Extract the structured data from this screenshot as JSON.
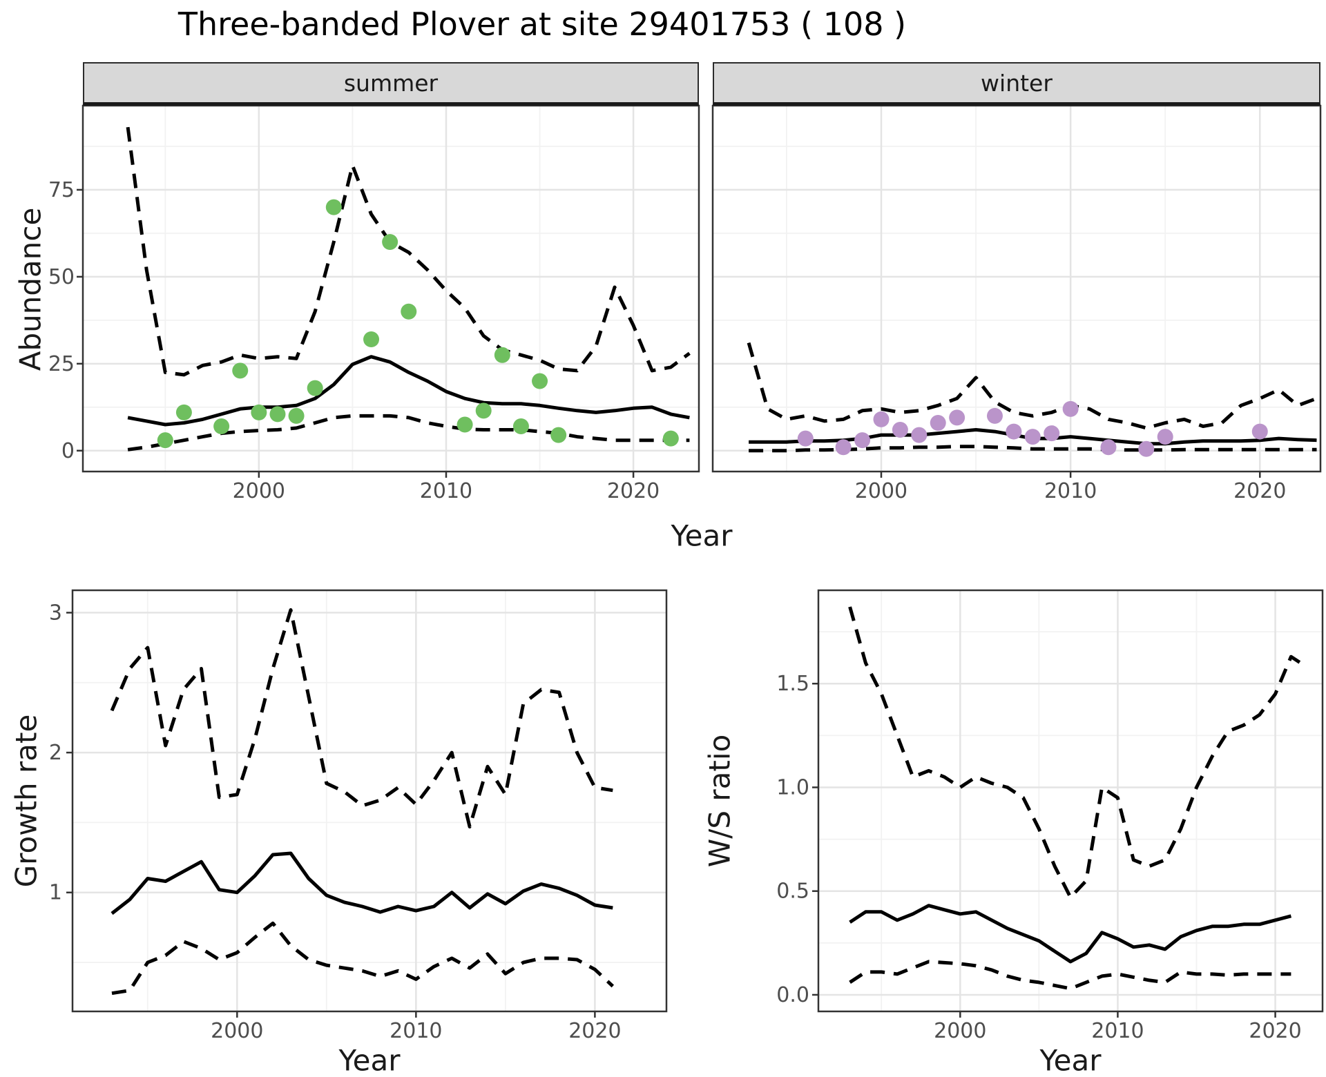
{
  "title": "Three-banded Plover at site 29401753 ( 108 )",
  "facets": {
    "summer": "summer",
    "winter": "winter"
  },
  "axis_titles": {
    "abundance": "Abundance",
    "year_top": "Year",
    "growth_rate": "Growth rate",
    "year_growth": "Year",
    "ws_ratio": "W/S ratio",
    "year_ws": "Year"
  },
  "colors": {
    "summer_points": "#6FBF5F",
    "winter_points": "#BA94CA",
    "line": "#000000",
    "grid_major": "#e4e4e4",
    "grid_minor": "#f2f2f2",
    "panel_border": "#333333",
    "strip_bg": "#d8d8d8",
    "tick_label": "#4d4d4d"
  },
  "chart_data": [
    {
      "id": "abundance_summer",
      "type": "line",
      "facet": "summer",
      "xlabel": "Year",
      "ylabel": "Abundance",
      "xlim": [
        1990.6,
        2023.5
      ],
      "ylim": [
        -6,
        99.2
      ],
      "x_ticks": [
        2000,
        2010,
        2020
      ],
      "x_tick_labels": [
        "2000",
        "2010",
        "2020"
      ],
      "x_minor": [
        1995,
        2005,
        2015
      ],
      "y_ticks": [
        0,
        25,
        50,
        75
      ],
      "y_tick_labels": [
        "0",
        "25",
        "50",
        "75"
      ],
      "y_minor": [
        12.5,
        37.5,
        62.5,
        87.5
      ],
      "grid": true,
      "legend": "none",
      "series": [
        {
          "name": "upper_95ci",
          "style": "dashed",
          "x": [
            1993,
            1994,
            1995,
            1996,
            1997,
            1998,
            1999,
            2000,
            2001,
            2002,
            2003,
            2004,
            2005,
            2006,
            2007,
            2008,
            2009,
            2010,
            2011,
            2012,
            2013,
            2014,
            2015,
            2016,
            2017,
            2018,
            2019,
            2020,
            2021,
            2022,
            2023
          ],
          "y": [
            93,
            52,
            22.5,
            21.8,
            24.5,
            25.5,
            27.5,
            26.5,
            27,
            26.5,
            40,
            60,
            82,
            68,
            60,
            57,
            52,
            46,
            41,
            33,
            29,
            27.5,
            26,
            23.5,
            23,
            30,
            47,
            36,
            23,
            24,
            28
          ]
        },
        {
          "name": "mean",
          "style": "solid",
          "x": [
            1993,
            1994,
            1995,
            1996,
            1997,
            1998,
            1999,
            2000,
            2001,
            2002,
            2003,
            2004,
            2005,
            2006,
            2007,
            2008,
            2009,
            2010,
            2011,
            2012,
            2013,
            2014,
            2015,
            2016,
            2017,
            2018,
            2019,
            2020,
            2021,
            2022,
            2023
          ],
          "y": [
            9.5,
            8.5,
            7.5,
            8,
            9,
            10.5,
            12,
            12.5,
            12.5,
            13,
            15,
            19,
            24.8,
            27,
            25.5,
            22.5,
            20,
            17,
            15,
            13.8,
            13.5,
            13.5,
            13,
            12.2,
            11.5,
            11,
            11.5,
            12.2,
            12.5,
            10.5,
            9.5
          ]
        },
        {
          "name": "lower_95ci",
          "style": "dashed",
          "x": [
            1993,
            1994,
            1995,
            1996,
            1997,
            1998,
            1999,
            2000,
            2001,
            2002,
            2003,
            2004,
            2005,
            2006,
            2007,
            2008,
            2009,
            2010,
            2011,
            2012,
            2013,
            2014,
            2015,
            2016,
            2017,
            2018,
            2019,
            2020,
            2021,
            2022,
            2023
          ],
          "y": [
            0.3,
            1,
            2,
            3,
            4,
            5,
            5.5,
            5.8,
            6,
            6.5,
            8,
            9.5,
            10,
            10,
            10,
            9.5,
            8,
            7,
            6.2,
            6,
            6,
            6,
            5.5,
            5,
            4,
            3.5,
            3,
            3,
            3,
            3,
            3
          ]
        },
        {
          "name": "observed",
          "style": "points",
          "color": "#6FBF5F",
          "x": [
            1995,
            1996,
            1998,
            1999,
            2000,
            2001,
            2002,
            2003,
            2004,
            2006,
            2007,
            2008,
            2011,
            2012,
            2013,
            2014,
            2015,
            2016,
            2022
          ],
          "y": [
            3,
            11,
            7,
            23,
            11,
            10.5,
            10,
            18,
            70,
            32,
            60,
            40,
            7.5,
            11.5,
            27.5,
            7,
            20,
            4.5,
            3.5
          ]
        }
      ]
    },
    {
      "id": "abundance_winter",
      "type": "line",
      "facet": "winter",
      "xlabel": "Year",
      "ylabel": "Abundance",
      "xlim": [
        1991.1,
        2023.2
      ],
      "ylim": [
        -6,
        99.2
      ],
      "x_ticks": [
        2000,
        2010,
        2020
      ],
      "x_tick_labels": [
        "2000",
        "2010",
        "2020"
      ],
      "x_minor": [
        1995,
        2005,
        2015
      ],
      "y_ticks": [
        0,
        25,
        50,
        75
      ],
      "y_tick_labels": [
        "0",
        "25",
        "50",
        "75"
      ],
      "y_minor": [
        12.5,
        37.5,
        62.5,
        87.5
      ],
      "grid": true,
      "legend": "none",
      "series": [
        {
          "name": "upper_95ci",
          "style": "dashed",
          "x": [
            1993,
            1994,
            1995,
            1996,
            1997,
            1998,
            1999,
            2000,
            2001,
            2002,
            2003,
            2004,
            2005,
            2006,
            2007,
            2008,
            2009,
            2010,
            2011,
            2012,
            2013,
            2014,
            2015,
            2016,
            2017,
            2018,
            2019,
            2020,
            2021,
            2022,
            2023
          ],
          "y": [
            31,
            12,
            9,
            10,
            8.5,
            9,
            11.5,
            12,
            11,
            11.5,
            13,
            15,
            21,
            14,
            11,
            10,
            11,
            13,
            12,
            9,
            8,
            6.5,
            8,
            9,
            7,
            8,
            13,
            15,
            17.5,
            13,
            15
          ]
        },
        {
          "name": "mean",
          "style": "solid",
          "x": [
            1993,
            1994,
            1995,
            1996,
            1997,
            1998,
            1999,
            2000,
            2001,
            2002,
            2003,
            2004,
            2005,
            2006,
            2007,
            2008,
            2009,
            2010,
            2011,
            2012,
            2013,
            2014,
            2015,
            2016,
            2017,
            2018,
            2019,
            2020,
            2021,
            2022,
            2023
          ],
          "y": [
            2.5,
            2.5,
            2.5,
            2.8,
            2.8,
            3,
            3.5,
            4.5,
            4.5,
            4.5,
            5,
            5.5,
            6,
            5.5,
            4.5,
            3.5,
            3.5,
            4,
            3.5,
            3,
            2.5,
            2,
            2,
            2.5,
            2.8,
            2.8,
            2.8,
            3,
            3.5,
            3.2,
            3
          ]
        },
        {
          "name": "lower_95ci",
          "style": "dashed",
          "x": [
            1993,
            1994,
            1995,
            1996,
            1997,
            1998,
            1999,
            2000,
            2001,
            2002,
            2003,
            2004,
            2005,
            2006,
            2007,
            2008,
            2009,
            2010,
            2011,
            2012,
            2013,
            2014,
            2015,
            2016,
            2017,
            2018,
            2019,
            2020,
            2021,
            2022,
            2023
          ],
          "y": [
            0,
            0,
            0,
            0.2,
            0.2,
            0.3,
            0.5,
            0.8,
            0.8,
            1,
            1,
            1.2,
            1.2,
            1,
            0.8,
            0.5,
            0.5,
            0.5,
            0.5,
            0.3,
            0.2,
            0.2,
            0.2,
            0.3,
            0.3,
            0.3,
            0.3,
            0.3,
            0.3,
            0.3,
            0.3
          ]
        },
        {
          "name": "observed",
          "style": "points",
          "color": "#BA94CA",
          "x": [
            1996,
            1998,
            1999,
            2000,
            2001,
            2002,
            2003,
            2004,
            2006,
            2007,
            2008,
            2009,
            2010,
            2012,
            2014,
            2015,
            2020
          ],
          "y": [
            3.5,
            1,
            3,
            9,
            6,
            4.5,
            8,
            9.5,
            10,
            5.5,
            4,
            5,
            12,
            1,
            0.5,
            4,
            5.5
          ]
        }
      ]
    },
    {
      "id": "growth",
      "type": "line",
      "xlabel": "Year",
      "ylabel": "Growth rate",
      "xlim": [
        1990.8,
        2024
      ],
      "ylim": [
        0.15,
        3.16
      ],
      "x_ticks": [
        2000,
        2010,
        2020
      ],
      "x_tick_labels": [
        "2000",
        "2010",
        "2020"
      ],
      "x_minor": [
        1995,
        2005,
        2015
      ],
      "y_ticks": [
        1,
        2,
        3
      ],
      "y_tick_labels": [
        "1",
        "2",
        "3"
      ],
      "y_minor": [
        0.5,
        1.5,
        2.5
      ],
      "grid": true,
      "legend": "none",
      "series": [
        {
          "name": "upper_95ci",
          "style": "dashed",
          "x": [
            1993,
            1994,
            1995,
            1996,
            1997,
            1998,
            1999,
            2000,
            2001,
            2002,
            2003,
            2004,
            2005,
            2006,
            2007,
            2008,
            2009,
            2010,
            2011,
            2012,
            2013,
            2014,
            2015,
            2016,
            2017,
            2018,
            2019,
            2020,
            2021
          ],
          "y": [
            2.3,
            2.6,
            2.75,
            2.05,
            2.45,
            2.6,
            1.68,
            1.7,
            2.1,
            2.6,
            3.02,
            2.4,
            1.78,
            1.72,
            1.62,
            1.66,
            1.75,
            1.63,
            1.8,
            2.0,
            1.47,
            1.9,
            1.7,
            2.35,
            2.45,
            2.43,
            2.0,
            1.75,
            1.73
          ]
        },
        {
          "name": "mean",
          "style": "solid",
          "x": [
            1993,
            1994,
            1995,
            1996,
            1997,
            1998,
            1999,
            2000,
            2001,
            2002,
            2003,
            2004,
            2005,
            2006,
            2007,
            2008,
            2009,
            2010,
            2011,
            2012,
            2013,
            2014,
            2015,
            2016,
            2017,
            2018,
            2019,
            2020,
            2021
          ],
          "y": [
            0.85,
            0.95,
            1.1,
            1.08,
            1.15,
            1.22,
            1.02,
            1.0,
            1.12,
            1.27,
            1.28,
            1.1,
            0.98,
            0.93,
            0.9,
            0.86,
            0.9,
            0.87,
            0.9,
            1.0,
            0.89,
            0.99,
            0.92,
            1.01,
            1.06,
            1.03,
            0.98,
            0.91,
            0.89
          ]
        },
        {
          "name": "lower_95ci",
          "style": "dashed",
          "x": [
            1993,
            1994,
            1995,
            1996,
            1997,
            1998,
            1999,
            2000,
            2001,
            2002,
            2003,
            2004,
            2005,
            2006,
            2007,
            2008,
            2009,
            2010,
            2011,
            2012,
            2013,
            2014,
            2015,
            2016,
            2017,
            2018,
            2019,
            2020,
            2021
          ],
          "y": [
            0.28,
            0.3,
            0.5,
            0.55,
            0.65,
            0.6,
            0.52,
            0.57,
            0.68,
            0.78,
            0.62,
            0.52,
            0.48,
            0.46,
            0.44,
            0.4,
            0.44,
            0.38,
            0.47,
            0.53,
            0.46,
            0.56,
            0.42,
            0.5,
            0.53,
            0.53,
            0.52,
            0.45,
            0.33
          ]
        }
      ]
    },
    {
      "id": "ws",
      "type": "line",
      "xlabel": "Year",
      "ylabel": "W/S ratio",
      "xlim": [
        1991,
        2023
      ],
      "ylim": [
        -0.08,
        1.95
      ],
      "x_ticks": [
        2000,
        2010,
        2020
      ],
      "x_tick_labels": [
        "2000",
        "2010",
        "2020"
      ],
      "x_minor": [
        1995,
        2005,
        2015
      ],
      "y_ticks": [
        0.0,
        0.5,
        1.0,
        1.5
      ],
      "y_tick_labels": [
        "0.0",
        "0.5",
        "1.0",
        "1.5"
      ],
      "y_minor": [
        0.25,
        0.75,
        1.25,
        1.75
      ],
      "grid": true,
      "legend": "none",
      "series": [
        {
          "name": "upper_95ci",
          "style": "dashed",
          "x": [
            1993,
            1994,
            1995,
            1996,
            1997,
            1998,
            1999,
            2000,
            2001,
            2002,
            2003,
            2004,
            2005,
            2006,
            2007,
            2008,
            2009,
            2010,
            2011,
            2012,
            2013,
            2014,
            2015,
            2016,
            2017,
            2018,
            2019,
            2020,
            2021,
            2021.6
          ],
          "y": [
            1.87,
            1.6,
            1.45,
            1.25,
            1.05,
            1.08,
            1.05,
            1.0,
            1.05,
            1.02,
            1.0,
            0.95,
            0.8,
            0.62,
            0.47,
            0.55,
            1.0,
            0.95,
            0.65,
            0.62,
            0.65,
            0.8,
            1.0,
            1.15,
            1.27,
            1.3,
            1.35,
            1.45,
            1.63,
            1.6
          ]
        },
        {
          "name": "mean",
          "style": "solid",
          "x": [
            1993,
            1994,
            1995,
            1996,
            1997,
            1998,
            1999,
            2000,
            2001,
            2002,
            2003,
            2004,
            2005,
            2006,
            2007,
            2008,
            2009,
            2010,
            2011,
            2012,
            2013,
            2014,
            2015,
            2016,
            2017,
            2018,
            2019,
            2020,
            2021
          ],
          "y": [
            0.35,
            0.4,
            0.4,
            0.36,
            0.39,
            0.43,
            0.41,
            0.39,
            0.4,
            0.36,
            0.32,
            0.29,
            0.26,
            0.21,
            0.16,
            0.2,
            0.3,
            0.27,
            0.23,
            0.24,
            0.22,
            0.28,
            0.31,
            0.33,
            0.33,
            0.34,
            0.34,
            0.36,
            0.38
          ]
        },
        {
          "name": "lower_95ci",
          "style": "dashed",
          "x": [
            1993,
            1994,
            1995,
            1996,
            1997,
            1998,
            1999,
            2000,
            2001,
            2002,
            2003,
            2004,
            2005,
            2006,
            2007,
            2008,
            2009,
            2010,
            2011,
            2012,
            2013,
            2014,
            2015,
            2016,
            2017,
            2018,
            2019,
            2020,
            2021
          ],
          "y": [
            0.06,
            0.11,
            0.11,
            0.1,
            0.13,
            0.16,
            0.155,
            0.15,
            0.14,
            0.12,
            0.09,
            0.07,
            0.06,
            0.045,
            0.03,
            0.06,
            0.09,
            0.1,
            0.085,
            0.07,
            0.06,
            0.11,
            0.1,
            0.1,
            0.095,
            0.1,
            0.1,
            0.1,
            0.1
          ]
        }
      ]
    }
  ]
}
